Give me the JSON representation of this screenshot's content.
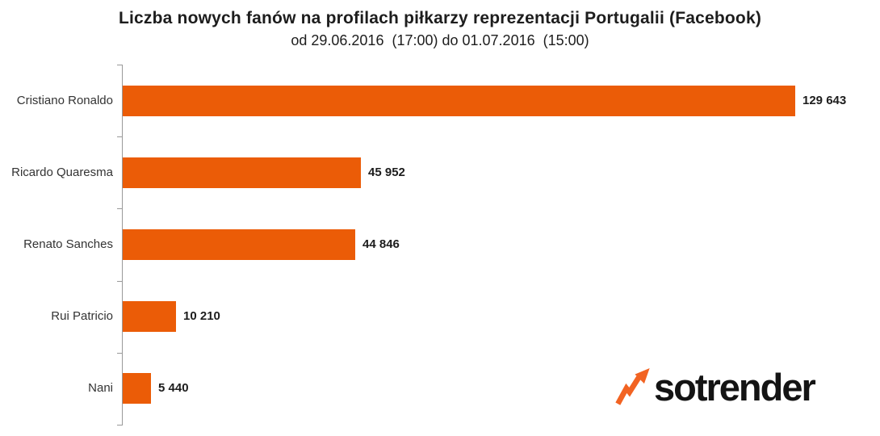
{
  "header": {
    "title": "Liczba nowych fanów na profilach piłkarzy reprezentacji Portugalii (Facebook)",
    "subtitle": "od 29.06.2016  (17:00) do 01.07.2016  (15:00)"
  },
  "chart_data": {
    "type": "bar",
    "orientation": "horizontal",
    "title": "Liczba nowych fanów na profilach piłkarzy reprezentacji Portugalii (Facebook)",
    "subtitle": "od 29.06.2016  (17:00) do 01.07.2016  (15:00)",
    "categories": [
      "Cristiano Ronaldo",
      "Ricardo Quaresma",
      "Renato Sanches",
      "Rui Patricio",
      "Nani"
    ],
    "values": [
      129643,
      45952,
      44846,
      10210,
      5440
    ],
    "value_labels": [
      "129 643",
      "45 952",
      "44 846",
      "10 210",
      "5 440"
    ],
    "xlim": [
      0,
      130000
    ],
    "grid": false,
    "legend": false,
    "bar_color": "#EB5C07",
    "axis_color": "#999999",
    "label_color": "#333333",
    "value_color": "#1d1d1d"
  },
  "branding": {
    "logo_text": "sotrender",
    "logo_icon": "trend-arrow-icon",
    "logo_text_color": "#141414",
    "logo_accent_color": "#F26322"
  }
}
